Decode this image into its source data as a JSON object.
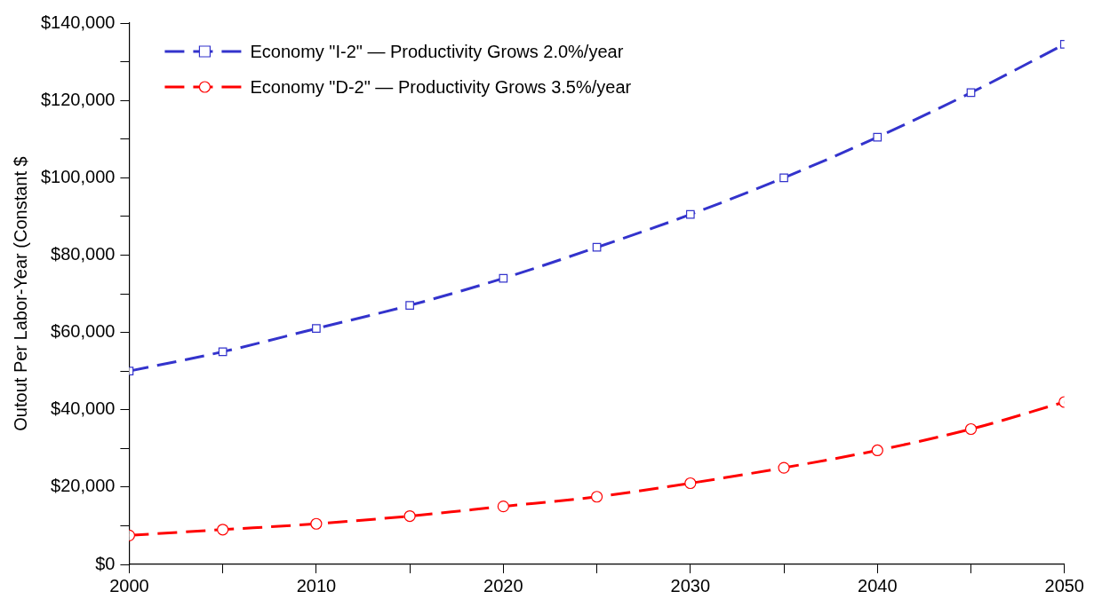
{
  "chart_data": {
    "type": "line",
    "ylabel": "Outout Per Labor-Year (Constant $",
    "x": [
      2000,
      2005,
      2010,
      2015,
      2020,
      2025,
      2030,
      2035,
      2040,
      2045,
      2050
    ],
    "series": [
      {
        "name": "Economy \"I-2\" — Productivity Grows 2.0%/year",
        "color": "#3333cc",
        "marker": "square",
        "values": [
          50000,
          55000,
          61000,
          67000,
          74000,
          82000,
          90500,
          100000,
          110500,
          122000,
          134500
        ]
      },
      {
        "name": "Economy \"D-2\" — Productivity Grows 3.5%/year",
        "color": "#ff0000",
        "marker": "circle",
        "values": [
          7500,
          9000,
          10500,
          12500,
          15000,
          17500,
          21000,
          25000,
          29500,
          35000,
          42000
        ]
      }
    ],
    "line_style": "dashed",
    "legend": "top left",
    "grid": false,
    "xlim": [
      2000,
      2050
    ],
    "xticks": [
      2000,
      {
        "value": 2005,
        "label": null
      },
      2010,
      {
        "value": 2015,
        "label": null
      },
      2020,
      {
        "value": 2025,
        "label": null
      },
      2030,
      {
        "value": 2035,
        "label": null
      },
      2040,
      {
        "value": 2045,
        "label": null
      },
      2050
    ],
    "ylim": [
      0,
      140000
    ],
    "yticks": [
      {
        "value": 0,
        "label": "$0"
      },
      {
        "value": 10000,
        "label": null
      },
      {
        "value": 20000,
        "label": "$20,000"
      },
      {
        "value": 30000,
        "label": null
      },
      {
        "value": 40000,
        "label": "$40,000"
      },
      {
        "value": 50000,
        "label": null
      },
      {
        "value": 60000,
        "label": "$60,000"
      },
      {
        "value": 70000,
        "label": null
      },
      {
        "value": 80000,
        "label": "$80,000"
      },
      {
        "value": 90000,
        "label": null
      },
      {
        "value": 100000,
        "label": "$100,000"
      },
      {
        "value": 110000,
        "label": null
      },
      {
        "value": 120000,
        "label": "$120,000"
      },
      {
        "value": 130000,
        "label": null
      },
      {
        "value": 140000,
        "label": "$140,000"
      }
    ]
  }
}
